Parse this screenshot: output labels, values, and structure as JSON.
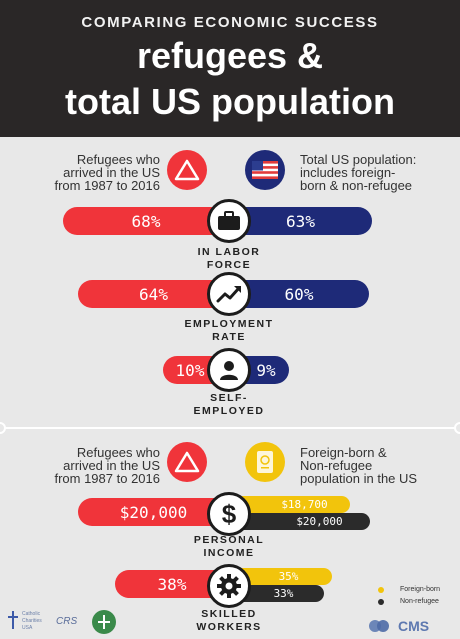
{
  "header": {
    "kicker": "COMPARING ECONOMIC SUCCESS",
    "title_line1": "refugees &",
    "title_line2": "total US population"
  },
  "section1": {
    "left_legend": [
      "Refugees who",
      "arrived in the US",
      "from 1987 to 2016"
    ],
    "right_legend": [
      "Total US population:",
      "includes foreign-",
      "born & non-refugee"
    ]
  },
  "metrics1": [
    {
      "label_l1": "IN LABOR",
      "label_l2": "FORCE",
      "refugee": "68%",
      "total": "63%"
    },
    {
      "label_l1": "EMPLOYMENT",
      "label_l2": "RATE",
      "refugee": "64%",
      "total": "60%"
    },
    {
      "label_l1": "SELF-",
      "label_l2": "EMPLOYED",
      "refugee": "10%",
      "total": "9%"
    }
  ],
  "section2": {
    "left_legend": [
      "Refugees who",
      "arrived in the US",
      "from 1987 to 2016"
    ],
    "right_legend": [
      "Foreign-born &",
      "Non-refugee",
      "population in the US"
    ]
  },
  "metrics2": [
    {
      "label_l1": "PERSONAL",
      "label_l2": "INCOME",
      "refugee": "$20,000",
      "foreign_born": "$18,700",
      "non_refugee": "$20,000"
    },
    {
      "label_l1": "SKILLED",
      "label_l2": "WORKERS",
      "refugee": "38%",
      "foreign_born": "35%",
      "non_refugee": "33%"
    }
  ],
  "key": {
    "foreign_born": "Foreign-born",
    "non_refugee": "Non-refugee"
  },
  "footer": {
    "logo1": "Catholic Charities USA",
    "logo2": "CRS",
    "logo3": "CMS"
  },
  "colors": {
    "refugee": "#f0343a",
    "total": "#1e2a78",
    "foreign_born": "#f2c40c",
    "non_refugee": "#2b2b2b",
    "header_bg": "#2a2727"
  }
}
